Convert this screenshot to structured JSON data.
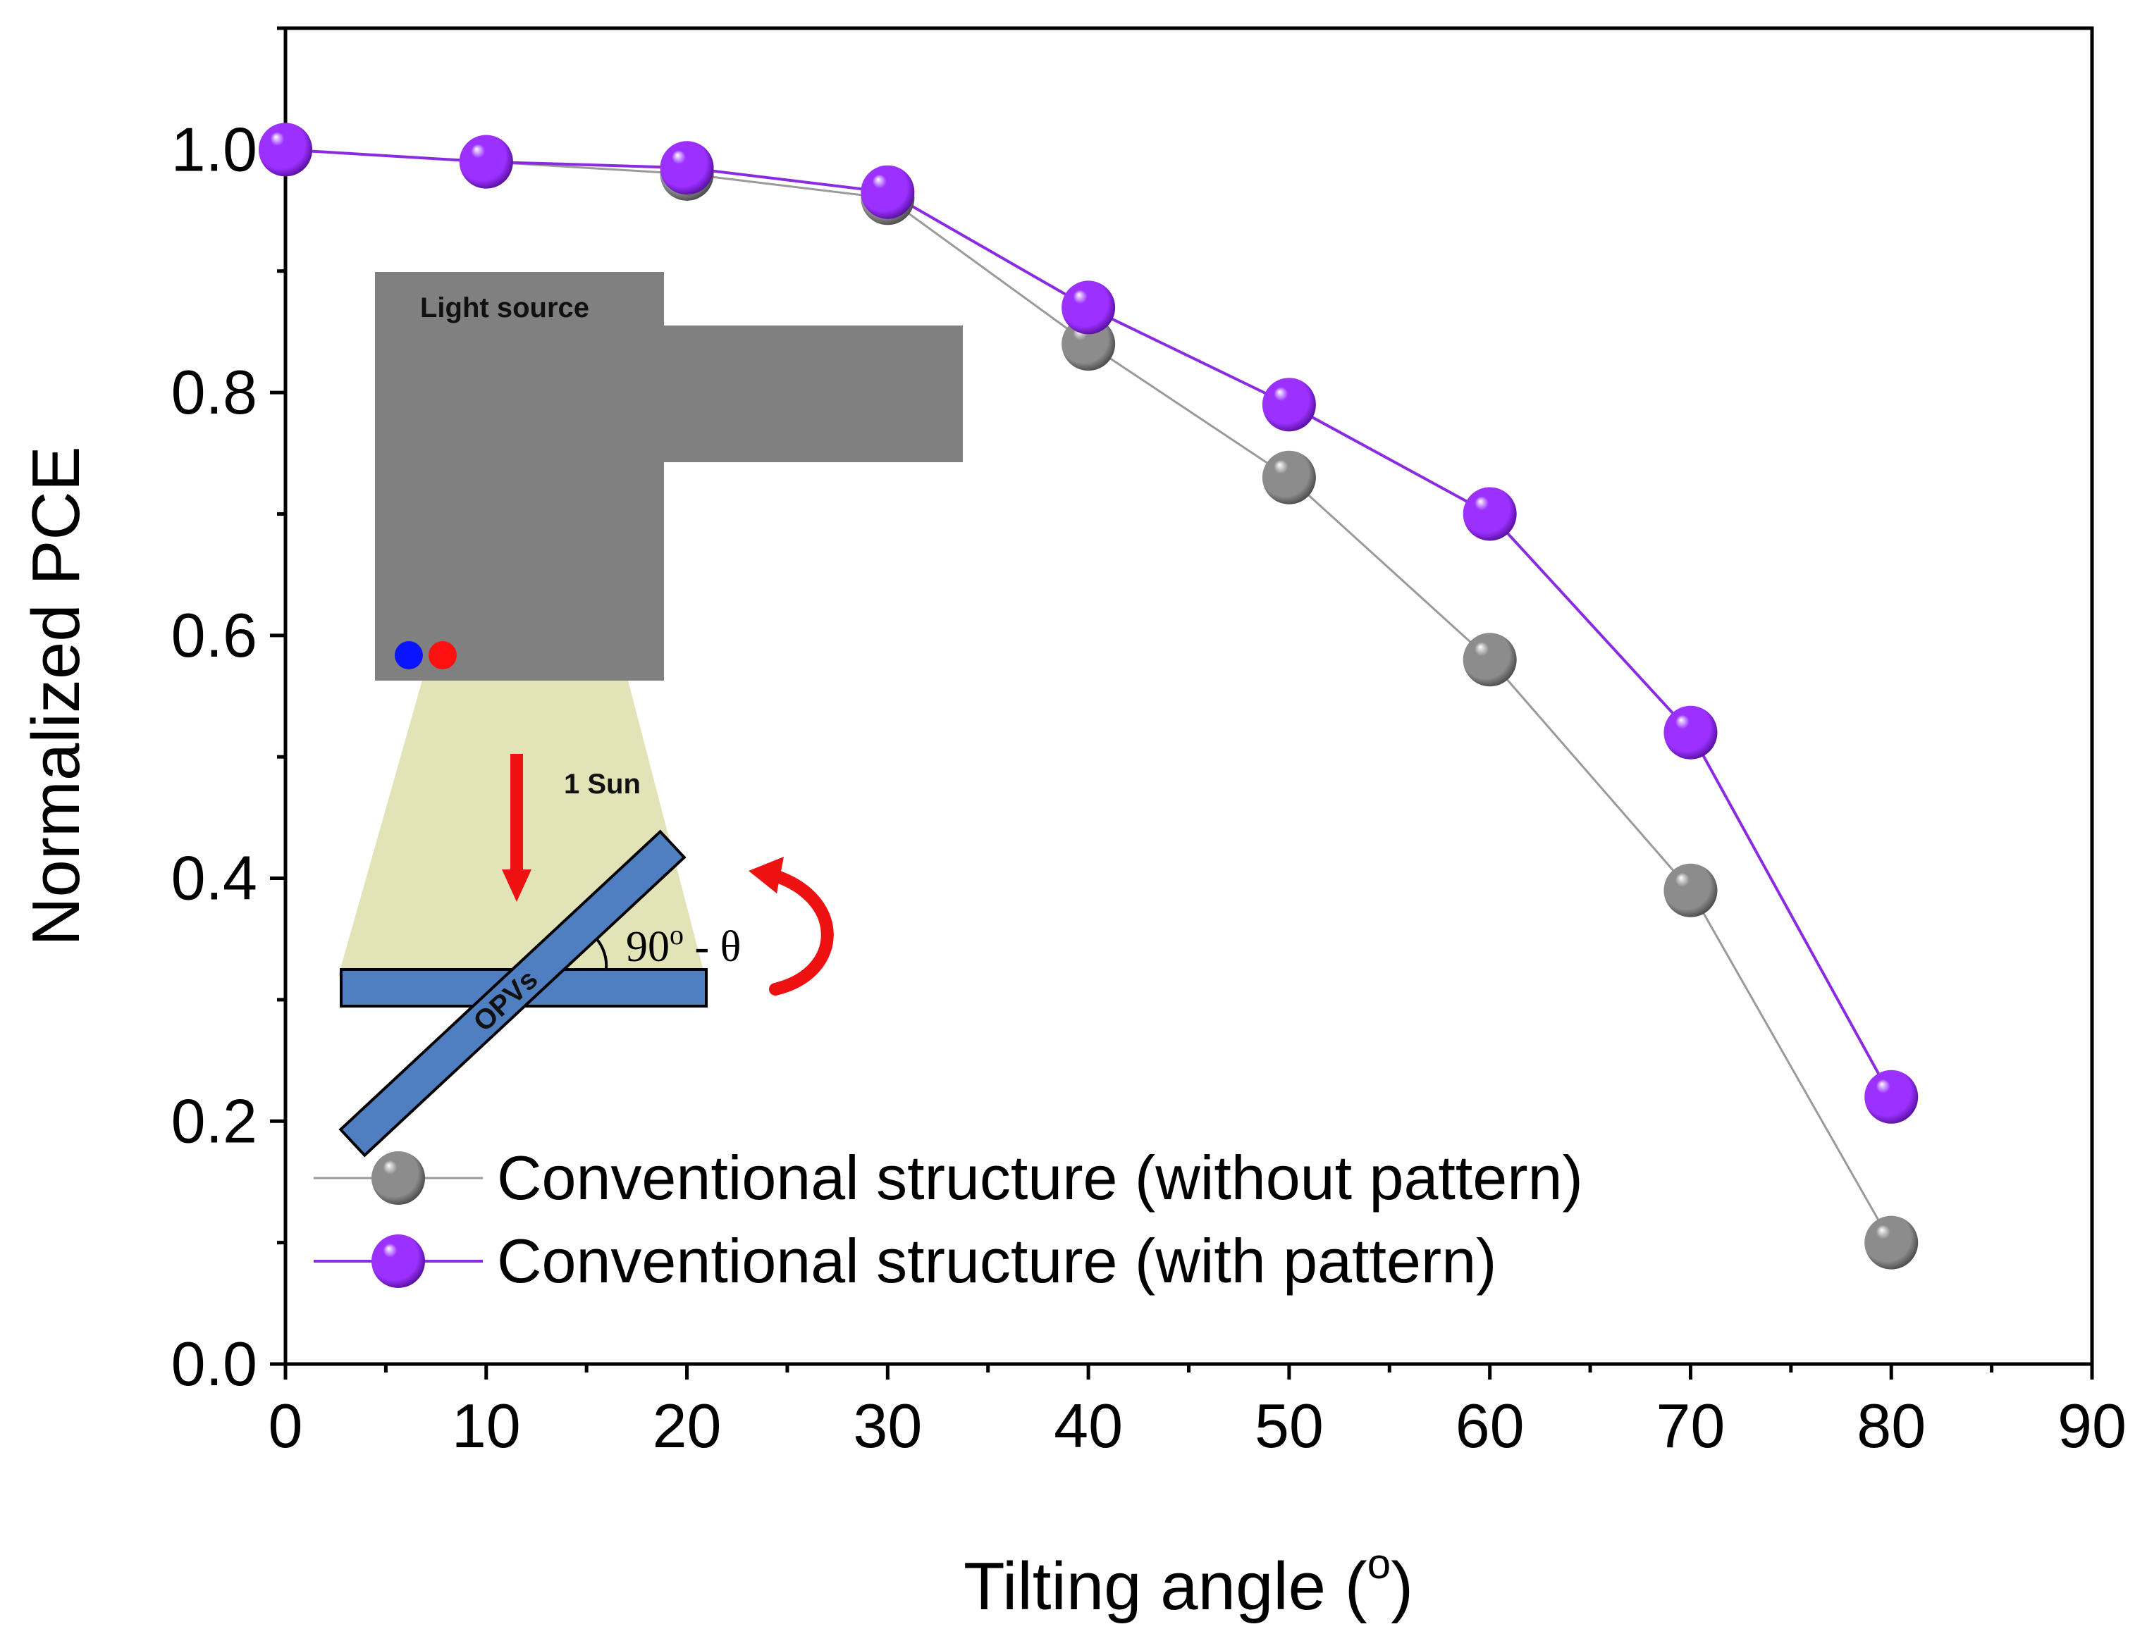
{
  "chart_data": {
    "type": "line",
    "xlabel": "Tilting angle (",
    "xlabel_sup": "o",
    "xlabel_close": ")",
    "ylabel": "Normalized PCE",
    "xlim": [
      0,
      90
    ],
    "ylim": [
      0,
      1.1
    ],
    "x_ticks": [
      0,
      10,
      20,
      30,
      40,
      50,
      60,
      70,
      80,
      90
    ],
    "x_tick_labels": [
      "0",
      "10",
      "20",
      "30",
      "40",
      "50",
      "60",
      "70",
      "80",
      "90"
    ],
    "y_ticks": [
      0,
      0.2,
      0.4,
      0.6,
      0.8,
      1.0
    ],
    "y_tick_labels": [
      "0.0",
      "0.2",
      "0.4",
      "0.6",
      "0.8",
      "1.0"
    ],
    "x": [
      0,
      10,
      20,
      30,
      40,
      50,
      60,
      70,
      80
    ],
    "series": [
      {
        "name": "Conventional structure (without pattern)",
        "values": [
          1.0,
          0.99,
          0.98,
          0.96,
          0.84,
          0.73,
          0.58,
          0.39,
          0.1
        ],
        "line_color": "#9a9a9a",
        "marker_color": "#8c8c8c",
        "marker_dark": "#3d3d3d"
      },
      {
        "name": "Conventional structure (with pattern)",
        "values": [
          1.0,
          0.99,
          0.985,
          0.965,
          0.87,
          0.79,
          0.7,
          0.52,
          0.22
        ],
        "line_color": "#8a2be2",
        "marker_color": "#9b30ff",
        "marker_dark": "#4b0a8c"
      }
    ],
    "legend_position": "bottom-left"
  },
  "inset": {
    "light_source_label": "Light source",
    "sun_label": "1 Sun",
    "device_label": "OPVs",
    "angle_label_main": "90",
    "angle_label_sup": "o",
    "angle_label_rest": " - θ",
    "source_color": "#808080",
    "beam_color": "#e3e3b8",
    "panel_color": "#4f7fc0",
    "arrow_color": "#ee1111",
    "dot_colors": [
      "#0a14ff",
      "#ff1010"
    ]
  }
}
